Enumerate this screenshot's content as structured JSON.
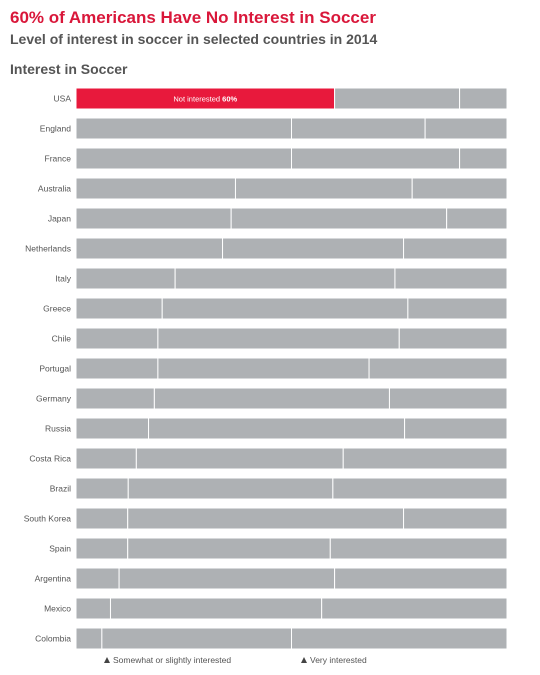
{
  "title": "60% of Americans Have No Interest in Soccer",
  "subtitle": "Level of interest in soccer in selected countries in 2014",
  "section_label": "Interest in Soccer",
  "colors": {
    "highlight": "#e8193c",
    "bar": "#aeb1b4",
    "title": "#d9173a"
  },
  "chart_data": {
    "type": "bar",
    "orientation": "horizontal",
    "stacked": true,
    "highlight_label": {
      "text": "Not interested",
      "value": "60%"
    },
    "categories": [
      "USA",
      "England",
      "France",
      "Australia",
      "Japan",
      "Netherlands",
      "Italy",
      "Greece",
      "Chile",
      "Portugal",
      "Germany",
      "Russia",
      "Costa Rica",
      "Brazil",
      "South Korea",
      "Spain",
      "Argentina",
      "Mexico",
      "Colombia"
    ],
    "series": [
      {
        "name": "Not interested",
        "values": [
          60,
          50,
          50,
          37,
          36,
          34,
          23,
          20,
          19,
          19,
          18,
          17,
          14,
          12,
          12,
          12,
          10,
          8,
          6
        ]
      },
      {
        "name": "Somewhat or slightly interested",
        "values": [
          29,
          31,
          39,
          41,
          50,
          42,
          51,
          57,
          56,
          49,
          54,
          60,
          48,
          47,
          64,
          47,
          50,
          49,
          44
        ]
      },
      {
        "name": "Very interested",
        "values": [
          11,
          19,
          11,
          22,
          14,
          24,
          26,
          23,
          25,
          32,
          27,
          24,
          38,
          40,
          24,
          41,
          40,
          43,
          50
        ]
      }
    ]
  },
  "legend": [
    {
      "label": "Somewhat or slightly interested"
    },
    {
      "label": "Very interested"
    }
  ]
}
